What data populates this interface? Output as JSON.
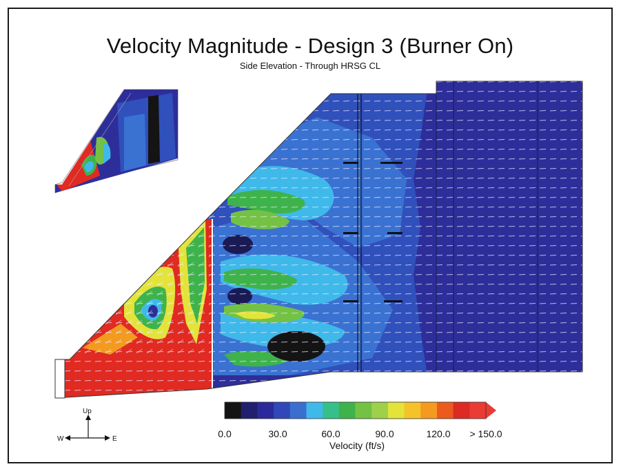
{
  "figure": {
    "title": "Velocity Magnitude - Design 3 (Burner On)",
    "subtitle": "Side Elevation - Through HRSG CL"
  },
  "colorbar": {
    "label": "Velocity (ft/s)",
    "tick_labels": [
      "0.0",
      "30.0",
      "60.0",
      "90.0",
      "120.0",
      "> 150.0"
    ],
    "colors": [
      "#141414",
      "#20206e",
      "#2a2a9a",
      "#2f47b8",
      "#3a6fd0",
      "#3fb9ea",
      "#35c08a",
      "#3fb34b",
      "#74c244",
      "#9fd04a",
      "#e3e33a",
      "#f5c22a",
      "#f39a1f",
      "#ec5a1e",
      "#dd2a22",
      "#e83c34"
    ]
  },
  "compass": {
    "up": "Up",
    "west": "W",
    "east": "E"
  },
  "palette": {
    "dark_blue": "#2b2b8f",
    "mid_blue": "#2e4bb5",
    "light_blue": "#3fb9ea",
    "green": "#3fb34b",
    "yellow": "#e3e33a",
    "red": "#e02a22"
  }
}
